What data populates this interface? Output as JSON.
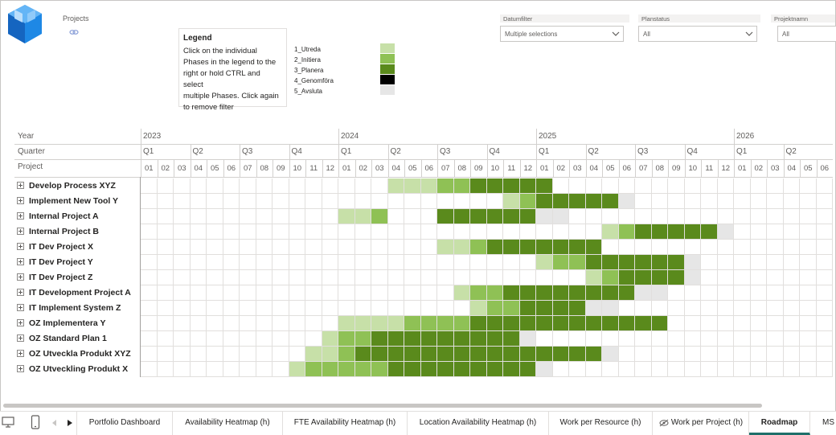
{
  "header": {
    "projects_label": "Projects"
  },
  "legend": {
    "title": "Legend",
    "lines": [
      "Click on the individual",
      "Phases in the legend to the",
      "right or hold CTRL and select",
      "multiple Phases. Click again",
      "to remove filter"
    ]
  },
  "phases": [
    {
      "label": "1_Utreda",
      "color": "#c7e0a8"
    },
    {
      "label": "2_Initiera",
      "color": "#8fc155"
    },
    {
      "label": "3_Planera",
      "color": "#5a8a1c"
    },
    {
      "label": "4_Genomföra",
      "color": "#000000"
    },
    {
      "label": "5_Avsluta",
      "color": "#e6e6e6"
    }
  ],
  "slicers": [
    {
      "label": "Datumfilter",
      "value": "Multiple selections"
    },
    {
      "label": "Planstatus",
      "value": "All"
    },
    {
      "label": "Projektnamn",
      "value": "All"
    }
  ],
  "grid": {
    "row_labels": {
      "year": "Year",
      "quarter": "Quarter",
      "project": "Project"
    },
    "years": [
      "2023",
      "2024",
      "2025",
      "2026"
    ],
    "quarters": [
      "Q1",
      "Q2",
      "Q3",
      "Q4",
      "Q1",
      "Q2",
      "Q3",
      "Q4",
      "Q1",
      "Q2",
      "Q3",
      "Q4",
      "Q1",
      "Q2"
    ],
    "months": [
      "01",
      "02",
      "03",
      "04",
      "05",
      "06",
      "07",
      "08",
      "09",
      "10",
      "11",
      "12",
      "01",
      "02",
      "03",
      "04",
      "05",
      "06",
      "07",
      "08",
      "09",
      "10",
      "11",
      "12",
      "01",
      "02",
      "03",
      "04",
      "05",
      "06",
      "07",
      "08",
      "09",
      "10",
      "11",
      "12",
      "01",
      "02",
      "03",
      "04",
      "05",
      "06"
    ],
    "projects": [
      {
        "name": "Develop Process XYZ",
        "phases": "000000000000000111223333300000000000000000"
      },
      {
        "name": "Implement New Tool Y",
        "phases": "000000000000000000000012333335000000000000"
      },
      {
        "name": "Internal Project A",
        "phases": "000000000000112000333333550000000000000000"
      },
      {
        "name": "Internal Project B",
        "phases": "000000000000000000000000000012333335000000"
      },
      {
        "name": "IT Dev Project X",
        "phases": "000000000000000000112333333300000000000000"
      },
      {
        "name": "IT Dev Project Y",
        "phases": "000000000000000000000000122333333500000000"
      },
      {
        "name": "IT Dev Project Z",
        "phases": "000000000000000000000000000123333500000000"
      },
      {
        "name": "IT Development Project A",
        "phases": "000000000000000000012233333333550000000000"
      },
      {
        "name": "IT Implement System Z",
        "phases": "000000000000000000001223333550000000000000"
      },
      {
        "name": "OZ Implementera Y",
        "phases": "000000000000111122223333333333330000000000"
      },
      {
        "name": "OZ Standard Plan 1",
        "phases": "000000000001223333333335000000000000000000"
      },
      {
        "name": "OZ Utveckla Produkt XYZ",
        "phases": "000000000011233333333333333350000000000000"
      },
      {
        "name": "OZ Utveckling Produkt X",
        "phases": "000000000122222333333333500000000000000000"
      }
    ]
  },
  "tabs": [
    "Portfolio Dashboard",
    "Availability Heatmap (h)",
    "FTE Availability Heatmap (h)",
    "Location Availability Heatmap (h)",
    "Work per Resource (h)",
    "Work per Project (h)",
    "Roadmap",
    "MS"
  ],
  "active_tab": "Roadmap"
}
